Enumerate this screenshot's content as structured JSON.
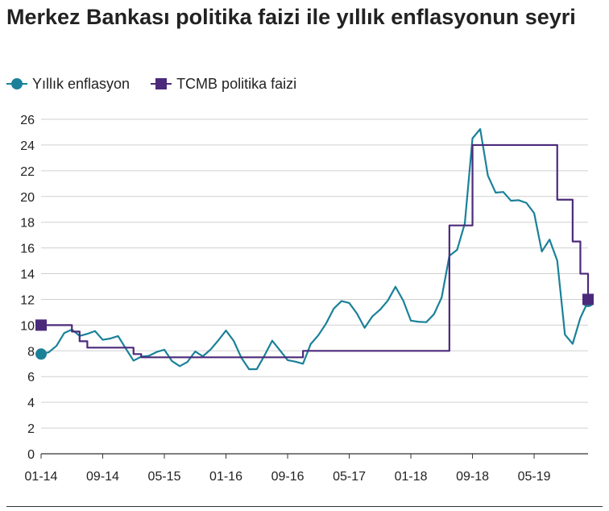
{
  "chart_data": {
    "type": "line",
    "title": "Merkez Bankası politika faizi ile yıllık enflasyonun seyri",
    "xlabel": "",
    "ylabel": "",
    "ylim": [
      0,
      26
    ],
    "yticks": [
      0,
      2,
      4,
      6,
      8,
      10,
      12,
      14,
      16,
      18,
      20,
      22,
      24,
      26
    ],
    "grid": true,
    "legend_position": "top-left",
    "x_range": [
      "01-14",
      "12-19"
    ],
    "x_tick_labels": [
      "01-14",
      "09-14",
      "05-15",
      "01-16",
      "09-16",
      "05-17",
      "01-18",
      "09-18",
      "05-19"
    ],
    "series": [
      {
        "name": "Yıllık enflasyon",
        "color": "#1a8199",
        "marker": "circle",
        "x": [
          "01-14",
          "02-14",
          "03-14",
          "04-14",
          "05-14",
          "06-14",
          "07-14",
          "08-14",
          "09-14",
          "10-14",
          "11-14",
          "12-14",
          "01-15",
          "02-15",
          "03-15",
          "04-15",
          "05-15",
          "06-15",
          "07-15",
          "08-15",
          "09-15",
          "10-15",
          "11-15",
          "12-15",
          "01-16",
          "02-16",
          "03-16",
          "04-16",
          "05-16",
          "06-16",
          "07-16",
          "08-16",
          "09-16",
          "10-16",
          "11-16",
          "12-16",
          "01-17",
          "02-17",
          "03-17",
          "04-17",
          "05-17",
          "06-17",
          "07-17",
          "08-17",
          "09-17",
          "10-17",
          "11-17",
          "12-17",
          "01-18",
          "02-18",
          "03-18",
          "04-18",
          "05-18",
          "06-18",
          "07-18",
          "08-18",
          "09-18",
          "10-18",
          "11-18",
          "12-18",
          "01-19",
          "02-19",
          "03-19",
          "04-19",
          "05-19",
          "06-19",
          "07-19",
          "08-19",
          "09-19",
          "10-19",
          "11-19",
          "12-19"
        ],
        "values": [
          7.75,
          7.89,
          8.39,
          9.38,
          9.66,
          9.16,
          9.32,
          9.54,
          8.86,
          8.96,
          9.15,
          8.17,
          7.24,
          7.55,
          7.61,
          7.91,
          8.09,
          7.2,
          6.81,
          7.14,
          7.95,
          7.58,
          8.1,
          8.81,
          9.58,
          8.78,
          7.46,
          6.57,
          6.58,
          7.64,
          8.79,
          8.05,
          7.28,
          7.16,
          7.0,
          8.53,
          9.22,
          10.13,
          11.29,
          11.87,
          11.72,
          10.9,
          9.79,
          10.68,
          11.2,
          11.9,
          12.98,
          11.92,
          10.35,
          10.26,
          10.23,
          10.85,
          12.15,
          15.39,
          15.85,
          17.9,
          24.52,
          25.24,
          21.62,
          20.3,
          20.35,
          19.67,
          19.71,
          19.5,
          18.71,
          15.72,
          16.65,
          15.01,
          9.26,
          8.55,
          10.56,
          11.84
        ]
      },
      {
        "name": "TCMB politika faizi",
        "color": "#4b2a7b",
        "marker": "square",
        "x": [
          "01-14",
          "02-14",
          "03-14",
          "04-14",
          "05-14",
          "06-14",
          "07-14",
          "08-14",
          "09-14",
          "10-14",
          "11-14",
          "12-14",
          "01-15",
          "02-15",
          "03-15",
          "04-15",
          "05-15",
          "06-15",
          "07-15",
          "08-15",
          "09-15",
          "10-15",
          "11-15",
          "12-15",
          "01-16",
          "02-16",
          "03-16",
          "04-16",
          "05-16",
          "06-16",
          "07-16",
          "08-16",
          "09-16",
          "10-16",
          "11-16",
          "12-16",
          "01-17",
          "02-17",
          "03-17",
          "04-17",
          "05-17",
          "06-17",
          "07-17",
          "08-17",
          "09-17",
          "10-17",
          "11-17",
          "12-17",
          "01-18",
          "02-18",
          "03-18",
          "04-18",
          "05-18",
          "06-18",
          "07-18",
          "08-18",
          "09-18",
          "10-18",
          "11-18",
          "12-18",
          "01-19",
          "02-19",
          "03-19",
          "04-19",
          "05-19",
          "06-19",
          "07-19",
          "08-19",
          "09-19",
          "10-19",
          "11-19",
          "12-19"
        ],
        "values": [
          10,
          10,
          10,
          10,
          9.5,
          8.75,
          8.25,
          8.25,
          8.25,
          8.25,
          8.25,
          8.25,
          7.75,
          7.5,
          7.5,
          7.5,
          7.5,
          7.5,
          7.5,
          7.5,
          7.5,
          7.5,
          7.5,
          7.5,
          7.5,
          7.5,
          7.5,
          7.5,
          7.5,
          7.5,
          7.5,
          7.5,
          7.5,
          7.5,
          8,
          8,
          8,
          8,
          8,
          8,
          8,
          8,
          8,
          8,
          8,
          8,
          8,
          8,
          8,
          8,
          8,
          8,
          8,
          17.75,
          17.75,
          17.75,
          24,
          24,
          24,
          24,
          24,
          24,
          24,
          24,
          24,
          24,
          24,
          19.75,
          19.75,
          16.5,
          14,
          12
        ]
      }
    ]
  }
}
